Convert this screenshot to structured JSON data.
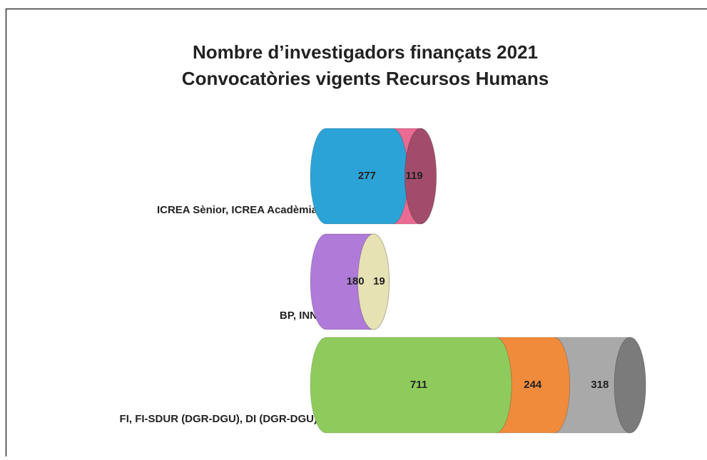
{
  "chart_data": {
    "type": "stacked-cylinder-bar",
    "title": [
      "Nombre d’investigadors finançats 2021",
      "Convocatòries vigents Recursos Humans"
    ],
    "categories": [
      "ICREA Sènior, ICREA Acadèmia",
      "BP, INN",
      "FI, FI-SDUR (DGR-DGU), DI (DGR-DGU)"
    ],
    "stacks": [
      {
        "values": [
          277,
          119
        ],
        "colors": [
          "#2ba3d6",
          "#ea6b93"
        ],
        "cap_color": "#a24c6b"
      },
      {
        "values": [
          180,
          19
        ],
        "colors": [
          "#b07ad8",
          "#c9c58f"
        ],
        "cap_color": "#e6e2b4"
      },
      {
        "values": [
          711,
          244,
          318
        ],
        "colors": [
          "#8ecb5c",
          "#f08b3c",
          "#a9a9a9"
        ],
        "cap_color": "#7b7b7b"
      }
    ]
  }
}
